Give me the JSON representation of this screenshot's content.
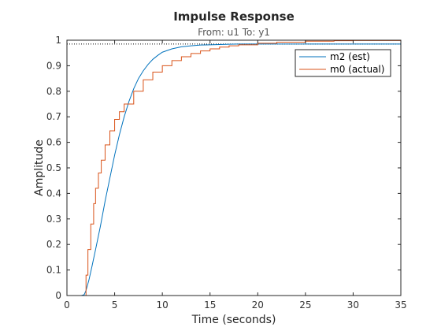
{
  "chart_data": {
    "type": "line",
    "title": "Impulse Response",
    "subtitle": "From: u1  To: y1",
    "xlabel": "Time (seconds)",
    "ylabel": "Amplitude",
    "xlim": [
      0,
      35
    ],
    "ylim": [
      0,
      1
    ],
    "xticks": [
      "0",
      "5",
      "10",
      "15",
      "20",
      "25",
      "30",
      "35"
    ],
    "yticks": [
      "0",
      "0.1",
      "0.2",
      "0.3",
      "0.4",
      "0.5",
      "0.6",
      "0.7",
      "0.8",
      "0.9",
      "1"
    ],
    "grid": false,
    "legend_position": "top-right",
    "reference_lines": [
      {
        "y": 1.0,
        "x_end": 27.5,
        "style": "dotted"
      },
      {
        "y": 0.985,
        "x_end": 35,
        "style": "dotted"
      }
    ],
    "series": [
      {
        "name": "m2 (est)",
        "color": "#0072BD",
        "style": "smooth",
        "x": [
          0,
          1.5,
          1.8,
          2.0,
          2.3,
          2.6,
          3.0,
          3.5,
          4.0,
          4.5,
          5.0,
          5.5,
          6.0,
          6.5,
          7.0,
          7.5,
          8.0,
          8.5,
          9.0,
          9.5,
          10,
          11,
          12,
          13,
          14,
          15,
          16,
          17,
          18,
          20,
          22,
          25,
          30,
          35
        ],
        "y": [
          0,
          0,
          0.003,
          0.02,
          0.06,
          0.11,
          0.18,
          0.27,
          0.37,
          0.46,
          0.55,
          0.63,
          0.7,
          0.76,
          0.81,
          0.85,
          0.88,
          0.905,
          0.925,
          0.94,
          0.953,
          0.966,
          0.974,
          0.978,
          0.981,
          0.982,
          0.983,
          0.984,
          0.985,
          0.985,
          0.985,
          0.985,
          0.985,
          0.985
        ]
      },
      {
        "name": "m0 (actual)",
        "color": "#D95319",
        "style": "step",
        "x": [
          0,
          1.8,
          2.0,
          2.2,
          2.5,
          2.8,
          3.0,
          3.3,
          3.6,
          4.0,
          4.5,
          5.0,
          5.5,
          6.0,
          7.0,
          8.0,
          9.0,
          10,
          11,
          12,
          13,
          14,
          15,
          16,
          17,
          18,
          20,
          22,
          25,
          28,
          30,
          35
        ],
        "y": [
          0,
          0,
          0.08,
          0.18,
          0.28,
          0.36,
          0.42,
          0.48,
          0.53,
          0.59,
          0.645,
          0.69,
          0.72,
          0.75,
          0.8,
          0.845,
          0.875,
          0.9,
          0.92,
          0.935,
          0.948,
          0.958,
          0.966,
          0.973,
          0.978,
          0.982,
          0.988,
          0.992,
          0.996,
          0.998,
          0.999,
          0.9995
        ]
      }
    ]
  }
}
